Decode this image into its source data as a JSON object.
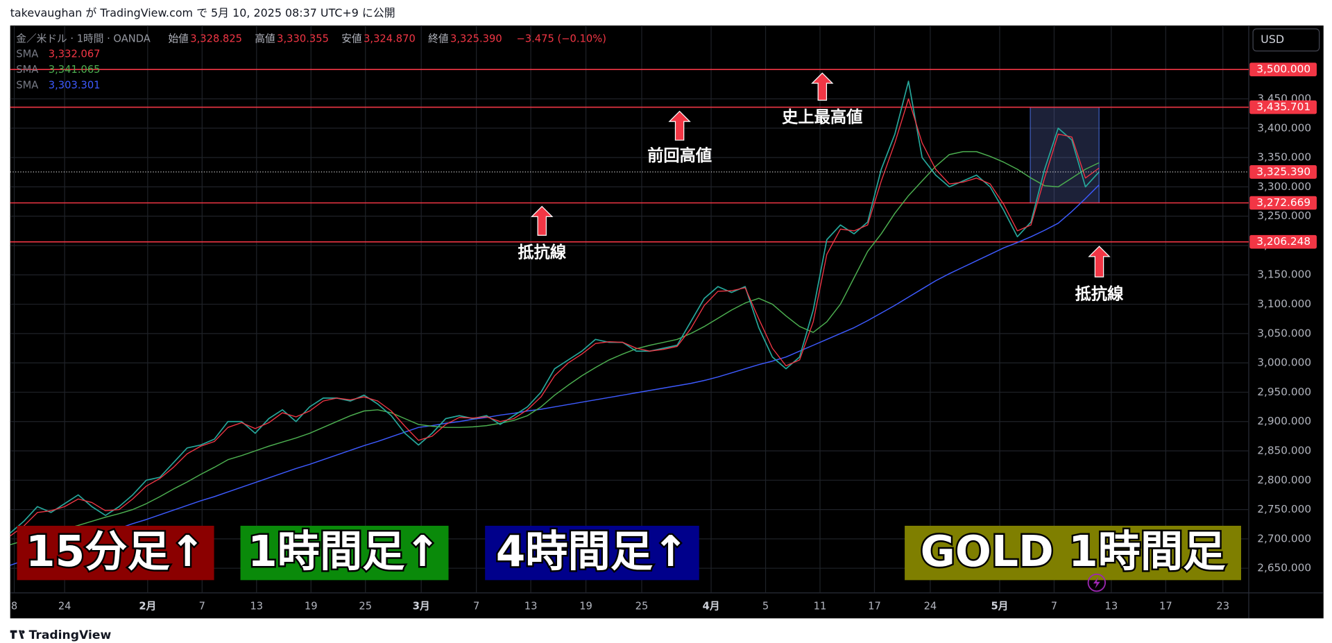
{
  "header": {
    "published": "takevaughan が TradingView.com で 5月 10, 2025 08:37 UTC+9 に公開",
    "brand": "TradingView",
    "currency": "USD"
  },
  "chart_data": {
    "type": "line",
    "symbol": "金／米ドル · 1時間 · OANDA",
    "ohlc": [
      {
        "name": "始値",
        "label": "3,328.825"
      },
      {
        "name": "高値",
        "label": "3,330.355"
      },
      {
        "name": "安値",
        "label": "3,324.870"
      },
      {
        "name": "終値",
        "label": "3,325.390"
      }
    ],
    "change": "−3.475 (−0.10%)",
    "xlim": [
      0,
      91
    ],
    "ylim": [
      2608,
      3575
    ],
    "xticks": [
      {
        "value": 0.3,
        "label": "8"
      },
      {
        "value": 4,
        "label": "24"
      },
      {
        "value": 10.1,
        "label": "2月"
      },
      {
        "value": 14.1,
        "label": "7"
      },
      {
        "value": 18.1,
        "label": "13"
      },
      {
        "value": 22.1,
        "label": "19"
      },
      {
        "value": 26.1,
        "label": "25"
      },
      {
        "value": 30.2,
        "label": "3月"
      },
      {
        "value": 34.25,
        "label": "7"
      },
      {
        "value": 38.25,
        "label": "13"
      },
      {
        "value": 42.3,
        "label": "19"
      },
      {
        "value": 46.4,
        "label": "25"
      },
      {
        "value": 51.5,
        "label": "4月"
      },
      {
        "value": 55.5,
        "label": "5"
      },
      {
        "value": 59.5,
        "label": "11"
      },
      {
        "value": 63.5,
        "label": "17"
      },
      {
        "value": 67.6,
        "label": "24"
      },
      {
        "value": 72.7,
        "label": "5月"
      },
      {
        "value": 76.7,
        "label": "7"
      },
      {
        "value": 80.9,
        "label": "13"
      },
      {
        "value": 84.9,
        "label": "17"
      },
      {
        "value": 89.1,
        "label": "23"
      }
    ],
    "yticks": [
      {
        "value": 2650,
        "label": "2,650.000"
      },
      {
        "value": 2700,
        "label": "2,700.000"
      },
      {
        "value": 2750,
        "label": "2,750.000"
      },
      {
        "value": 2800,
        "label": "2,800.000"
      },
      {
        "value": 2850,
        "label": "2,850.000"
      },
      {
        "value": 2900,
        "label": "2,900.000"
      },
      {
        "value": 2950,
        "label": "2,950.000"
      },
      {
        "value": 3000,
        "label": "3,000.000"
      },
      {
        "value": 3050,
        "label": "3,050.000"
      },
      {
        "value": 3100,
        "label": "3,100.000"
      },
      {
        "value": 3150,
        "label": "3,150.000"
      },
      {
        "value": 3200,
        "label": "3,200.000"
      },
      {
        "value": 3250,
        "label": "3,250.000"
      },
      {
        "value": 3300,
        "label": "3,300.000"
      },
      {
        "value": 3350,
        "label": "3,350.000"
      },
      {
        "value": 3400,
        "label": "3,400.000"
      },
      {
        "value": 3450,
        "label": "3,450.000"
      }
    ],
    "grid": true,
    "price": {
      "color": "#26a69a",
      "values": [
        2710,
        2730,
        2755,
        2745,
        2760,
        2775,
        2755,
        2740,
        2755,
        2775,
        2800,
        2805,
        2830,
        2855,
        2860,
        2870,
        2900,
        2900,
        2880,
        2905,
        2920,
        2900,
        2925,
        2940,
        2940,
        2935,
        2945,
        2930,
        2910,
        2880,
        2860,
        2880,
        2905,
        2910,
        2905,
        2910,
        2895,
        2910,
        2925,
        2950,
        2990,
        3005,
        3020,
        3040,
        3035,
        3035,
        3020,
        3020,
        3025,
        3030,
        3070,
        3110,
        3130,
        3120,
        3130,
        3060,
        3010,
        2990,
        3010,
        3090,
        3210,
        3235,
        3220,
        3240,
        3330,
        3390,
        3480,
        3350,
        3320,
        3300,
        3310,
        3320,
        3300,
        3260,
        3215,
        3240,
        3330,
        3400,
        3380,
        3300,
        3325.39
      ]
    },
    "series": [
      {
        "name": "SMA",
        "last_label": "3,332.067",
        "color": "#f23645",
        "values": [
          2705,
          2722,
          2745,
          2748,
          2755,
          2768,
          2762,
          2748,
          2750,
          2768,
          2790,
          2803,
          2822,
          2845,
          2858,
          2866,
          2890,
          2898,
          2888,
          2898,
          2915,
          2908,
          2918,
          2935,
          2940,
          2937,
          2942,
          2935,
          2918,
          2892,
          2868,
          2875,
          2895,
          2907,
          2906,
          2908,
          2900,
          2905,
          2920,
          2942,
          2978,
          3000,
          3015,
          3033,
          3036,
          3035,
          3025,
          3020,
          3023,
          3028,
          3058,
          3098,
          3122,
          3123,
          3128,
          3075,
          3025,
          2995,
          3005,
          3070,
          3185,
          3228,
          3225,
          3235,
          3310,
          3375,
          3450,
          3375,
          3330,
          3305,
          3308,
          3315,
          3305,
          3270,
          3225,
          3235,
          3315,
          3390,
          3385,
          3315,
          3332.067
        ]
      },
      {
        "name": "SMA",
        "last_label": "3,341.065",
        "color": "#4caf50",
        "values": [
          2690,
          2697,
          2703,
          2710,
          2717,
          2723,
          2730,
          2737,
          2743,
          2750,
          2760,
          2772,
          2785,
          2797,
          2810,
          2822,
          2835,
          2842,
          2850,
          2858,
          2865,
          2872,
          2880,
          2890,
          2900,
          2910,
          2918,
          2920,
          2915,
          2905,
          2895,
          2892,
          2890,
          2890,
          2891,
          2893,
          2897,
          2902,
          2910,
          2925,
          2945,
          2962,
          2978,
          2992,
          3005,
          3015,
          3024,
          3030,
          3035,
          3040,
          3050,
          3062,
          3076,
          3090,
          3102,
          3110,
          3100,
          3080,
          3062,
          3052,
          3070,
          3100,
          3145,
          3190,
          3220,
          3255,
          3285,
          3310,
          3335,
          3355,
          3360,
          3360,
          3352,
          3342,
          3330,
          3315,
          3302,
          3300,
          3315,
          3330,
          3341.065
        ]
      },
      {
        "name": "SMA",
        "last_label": "3,303.301",
        "color": "#3d5afe",
        "values": [
          2655,
          2663,
          2671,
          2678,
          2686,
          2694,
          2702,
          2710,
          2718,
          2726,
          2733,
          2741,
          2749,
          2757,
          2765,
          2772,
          2780,
          2788,
          2796,
          2804,
          2812,
          2820,
          2827,
          2835,
          2843,
          2851,
          2859,
          2866,
          2874,
          2882,
          2890,
          2893,
          2897,
          2900,
          2904,
          2907,
          2911,
          2914,
          2918,
          2921,
          2925,
          2929,
          2933,
          2937,
          2941,
          2945,
          2949,
          2953,
          2957,
          2961,
          2965,
          2970,
          2976,
          2983,
          2990,
          2997,
          3003,
          3010,
          3020,
          3030,
          3040,
          3050,
          3060,
          3072,
          3085,
          3098,
          3112,
          3126,
          3140,
          3152,
          3163,
          3174,
          3185,
          3196,
          3205,
          3215,
          3226,
          3238,
          3258,
          3280,
          3303.301
        ]
      }
    ],
    "levels": [
      {
        "value": 3500,
        "label": "3,500.000"
      },
      {
        "value": 3435.701,
        "label": "3,435.701"
      },
      {
        "value": 3272.669,
        "label": "3,272.669"
      },
      {
        "value": 3206.248,
        "label": "3,206.248"
      }
    ],
    "current": {
      "value": 3325.39,
      "label": "3,325.390"
    },
    "annotations": [
      "史上最高値",
      "前回高値",
      "抵抗線",
      "抵抗線"
    ],
    "banners": [
      "15分足↑",
      "1時間足↑",
      "4時間足↑",
      "GOLD 1時間足"
    ]
  }
}
